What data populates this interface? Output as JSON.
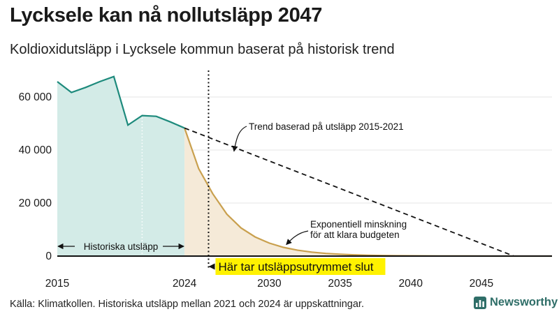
{
  "header": {
    "title": "Lycksele kan nå nollutsläpp 2047",
    "subtitle": "Koldioxidutsläpp i Lycksele kommun baserat på historisk trend"
  },
  "footer": {
    "source": "Källa: Klimatkollen. Historiska utsläpp mellan 2021 och 2024 är uppskattningar.",
    "brand": "Newsworthy"
  },
  "colors": {
    "historical_line": "#1d8a7c",
    "historical_fill": "#d3ebe7",
    "exp_line": "#c9a04e",
    "exp_fill": "#f5ead8",
    "trend_line": "#111111",
    "highlight": "#fff200",
    "brand": "#2f6e68"
  },
  "chart_data": {
    "type": "area",
    "title": "Lycksele kan nå nollutsläpp 2047",
    "subtitle": "Koldioxidutsläpp i Lycksele kommun baserat på historisk trend",
    "xlabel": "",
    "ylabel": "",
    "xlim": [
      2015,
      2050
    ],
    "ylim": [
      0,
      70000
    ],
    "grid": true,
    "x_ticks": [
      {
        "value": 2015,
        "label": "2015"
      },
      {
        "value": 2024,
        "label": "2024"
      },
      {
        "value": 2030,
        "label": "2030"
      },
      {
        "value": 2035,
        "label": "2035"
      },
      {
        "value": 2040,
        "label": "2040"
      },
      {
        "value": 2045,
        "label": "2045"
      }
    ],
    "y_ticks": [
      {
        "value": 0,
        "label": "0"
      },
      {
        "value": 20000,
        "label": "20 000"
      },
      {
        "value": 40000,
        "label": "40 000"
      },
      {
        "value": 60000,
        "label": "60 000"
      }
    ],
    "series": [
      {
        "name": "Historiska utsläpp",
        "style": "solid-area",
        "points": [
          [
            2015,
            65800
          ],
          [
            2016,
            61700
          ],
          [
            2017,
            63600
          ],
          [
            2018,
            65800
          ],
          [
            2019,
            67700
          ],
          [
            2020,
            49400
          ],
          [
            2021,
            53000
          ],
          [
            2022,
            52700
          ],
          [
            2023,
            50600
          ],
          [
            2024,
            48300
          ]
        ]
      },
      {
        "name": "Trend baserad på utsläpp 2015-2021",
        "style": "dashed",
        "points": [
          [
            2024,
            48300
          ],
          [
            2047.3,
            0
          ],
          [
            2050,
            0
          ]
        ]
      },
      {
        "name": "Exponentiell minskning för att klara budgeten",
        "style": "solid-area",
        "points": [
          [
            2024,
            48300
          ],
          [
            2025,
            33000
          ],
          [
            2026,
            23500
          ],
          [
            2027,
            15800
          ],
          [
            2028,
            10600
          ],
          [
            2029,
            7200
          ],
          [
            2030,
            4900
          ],
          [
            2031,
            3300
          ],
          [
            2032,
            2200
          ],
          [
            2033,
            1500
          ],
          [
            2034,
            1000
          ],
          [
            2035,
            700
          ],
          [
            2036,
            470
          ],
          [
            2037,
            320
          ],
          [
            2038,
            210
          ],
          [
            2039,
            140
          ],
          [
            2040,
            100
          ],
          [
            2042,
            40
          ],
          [
            2044,
            15
          ],
          [
            2046,
            5
          ],
          [
            2050,
            0
          ]
        ]
      }
    ],
    "markers": [
      {
        "type": "vline",
        "x": 2025.7,
        "style": "dotted",
        "label": "Här tar utsläppsutrymmet slut"
      }
    ],
    "annotations": [
      {
        "text": "Trend baserad på utsläpp 2015-2021",
        "target": [
          2027.5,
          39000
        ]
      },
      {
        "lines": [
          "Exponentiell minskning",
          "för att klara budgeten"
        ],
        "target": [
          2031,
          3300
        ]
      },
      {
        "text": "Historiska utsläpp",
        "span": [
          2015,
          2024
        ]
      }
    ]
  }
}
